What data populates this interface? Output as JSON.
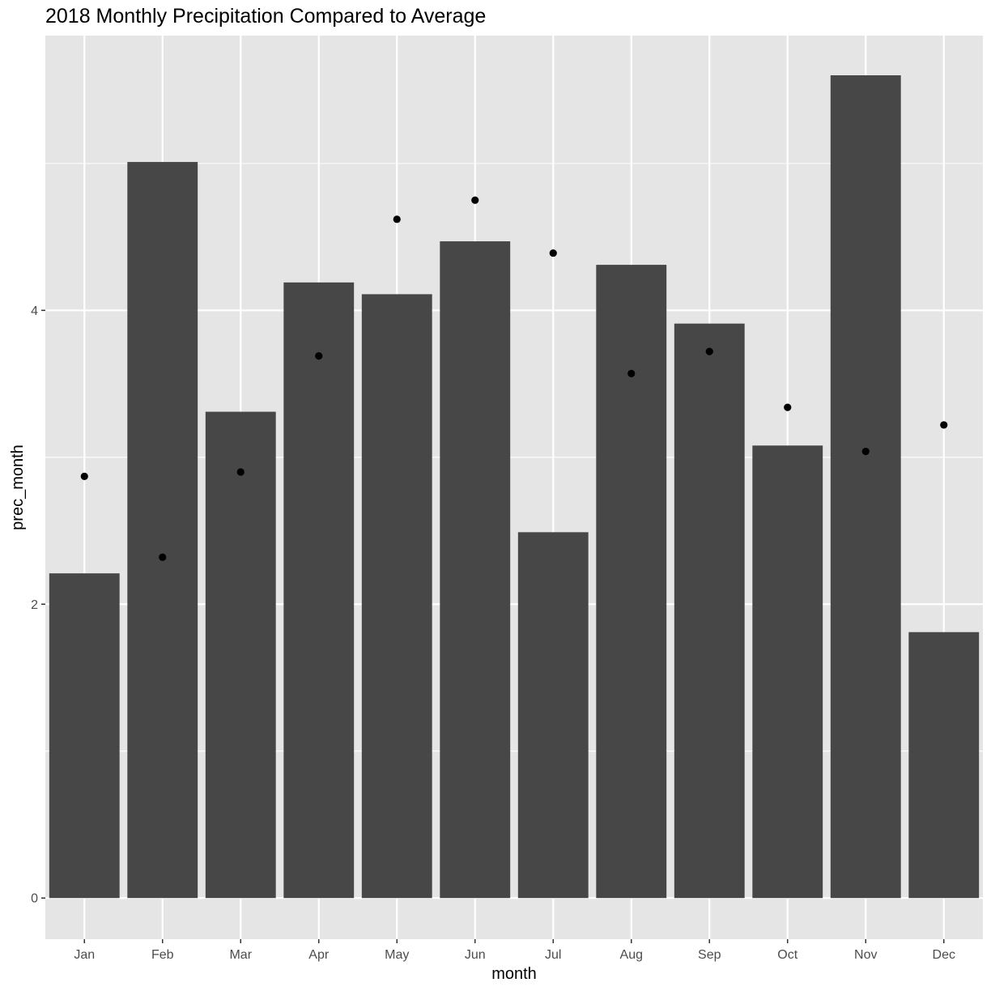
{
  "chart_data": {
    "type": "bar",
    "title": "2018 Monthly Precipitation Compared to Average",
    "xlabel": "month",
    "ylabel": "prec_month",
    "categories": [
      "Jan",
      "Feb",
      "Mar",
      "Apr",
      "May",
      "Jun",
      "Jul",
      "Aug",
      "Sep",
      "Oct",
      "Nov",
      "Dec"
    ],
    "series": [
      {
        "type": "bar",
        "values": [
          2.21,
          5.01,
          3.31,
          4.19,
          4.11,
          4.47,
          2.49,
          4.31,
          3.91,
          3.08,
          5.6,
          1.81
        ]
      },
      {
        "type": "point",
        "values": [
          2.87,
          2.32,
          2.9,
          3.69,
          4.62,
          4.75,
          4.39,
          3.57,
          3.72,
          3.34,
          3.04,
          3.22
        ]
      }
    ],
    "ylim": [
      -0.28,
      5.87
    ],
    "yticks": [
      0,
      2,
      4
    ],
    "grid": true,
    "colors": {
      "bar": "#474747",
      "point": "#000000",
      "panel": "#e5e5e5",
      "grid": "#ffffff"
    }
  }
}
